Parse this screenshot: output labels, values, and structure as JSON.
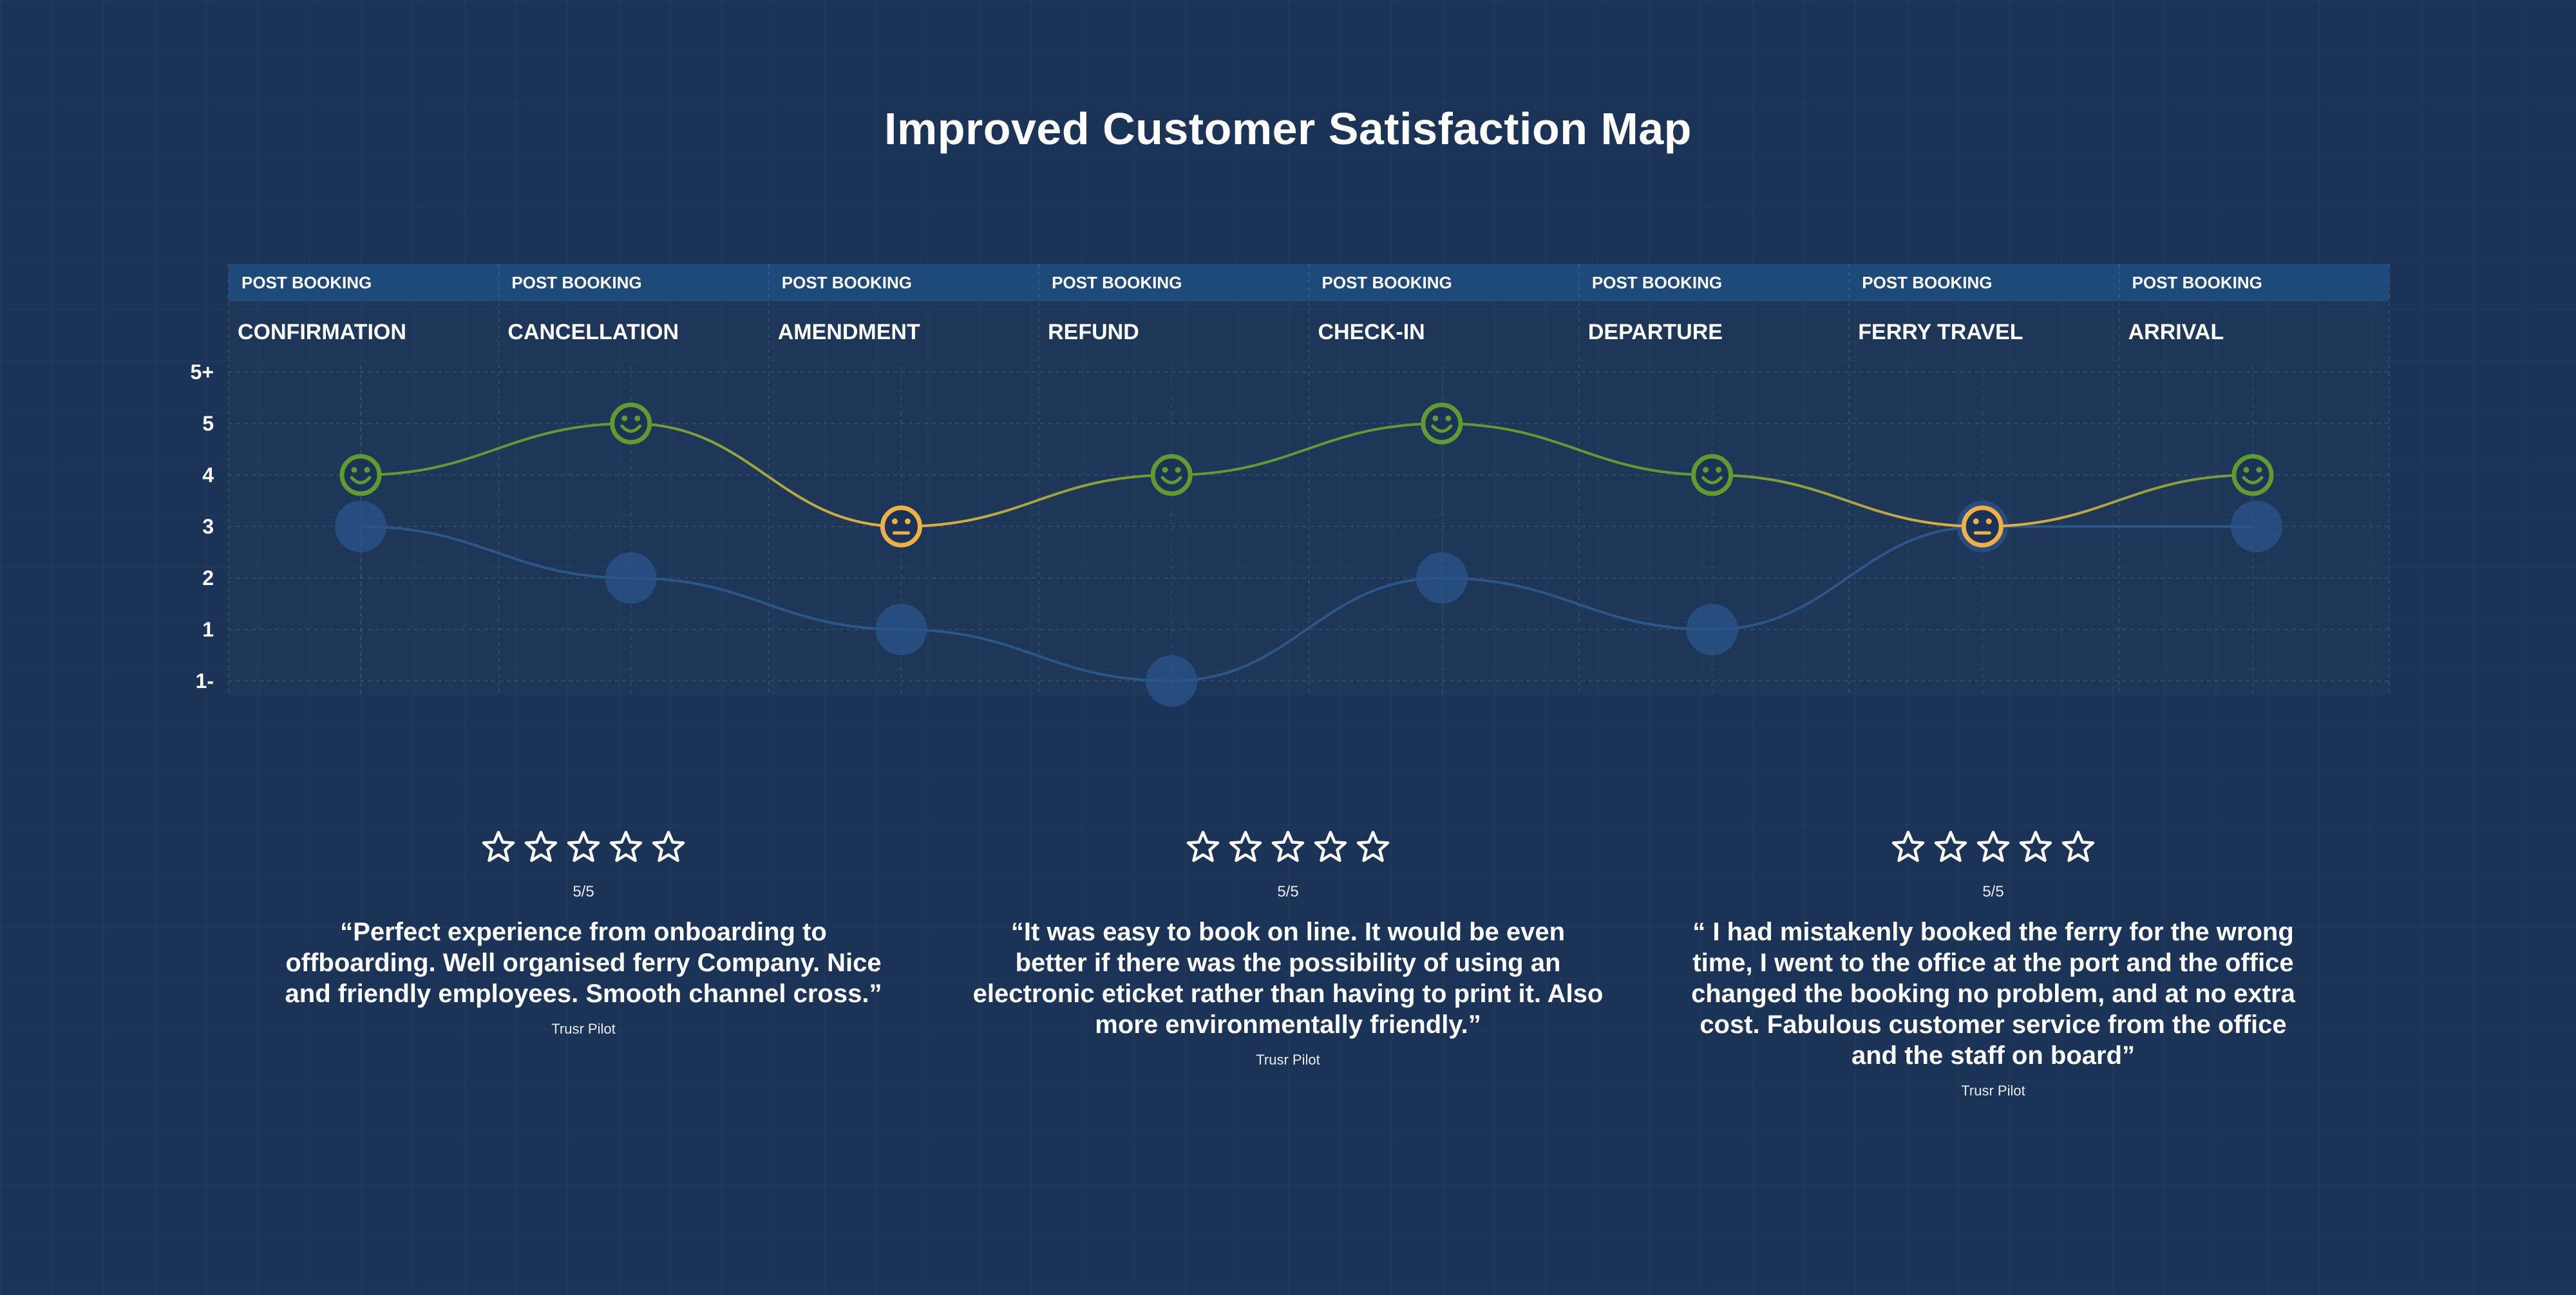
{
  "title": "Improved Customer Satisfaction Map",
  "colors": {
    "background": "#1b3356",
    "header_band": "#1e4a79",
    "positive": "#5f9b2e",
    "neutral": "#f0b047",
    "previous": "#2a5689"
  },
  "chart_data": {
    "type": "line",
    "categories": [
      "CONFIRMATION",
      "CANCELLATION",
      "AMENDMENT",
      "REFUND",
      "CHECK-IN",
      "DEPARTURE",
      "FERRY TRAVEL",
      "ARRIVAL"
    ],
    "stage_groups": [
      "POST BOOKING",
      "POST BOOKING",
      "POST BOOKING",
      "POST BOOKING",
      "POST BOOKING",
      "POST BOOKING",
      "POST BOOKING",
      "POST BOOKING"
    ],
    "y_tick_labels": [
      "5+",
      "5",
      "4",
      "3",
      "2",
      "1",
      "1-"
    ],
    "y_tick_values": [
      6,
      5,
      4,
      3,
      2,
      1,
      0
    ],
    "ylim": [
      0,
      6
    ],
    "grid": true,
    "series": [
      {
        "values": [
          4,
          5,
          3,
          4,
          5,
          4,
          3,
          4
        ],
        "moods": [
          "happy",
          "happy",
          "neutral",
          "happy",
          "happy",
          "happy",
          "neutral",
          "happy"
        ]
      },
      {
        "values": [
          3,
          2,
          1,
          0,
          2,
          1,
          3,
          3
        ]
      }
    ]
  },
  "reviews": [
    {
      "stars": 5,
      "score": "5/5",
      "quote": "“Perfect experience from onboarding to offboarding. Well organised ferry Company. Nice and friendly employees. Smooth channel cross.”",
      "source": "Trusr Pilot"
    },
    {
      "stars": 5,
      "score": "5/5",
      "quote": "“It was easy to book on line. It would be even better if there was the possibility of using an electronic eticket rather than having to print it. Also more environmentally friendly.”",
      "source": "Trusr Pilot"
    },
    {
      "stars": 5,
      "score": "5/5",
      "quote": "“ I had mistakenly booked the ferry for the wrong time, I went to the office at the port and the office changed the booking no problem, and at no extra cost. Fabulous customer service from the office and the staff on board”",
      "source": "Trusr Pilot"
    }
  ]
}
